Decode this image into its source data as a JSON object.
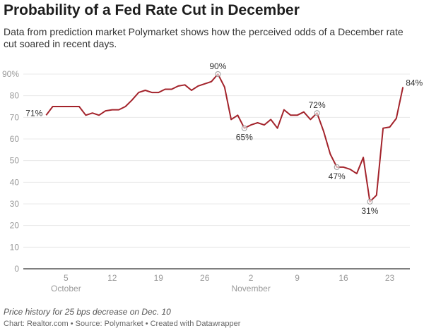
{
  "title": "Probability of a Fed Rate Cut in December",
  "subtitle": "Data from prediction market Polymarket shows how the perceived odds of a December rate cut soared in recent days.",
  "note": "Price history for 25 bps decrease on Dec. 10",
  "credit": "Chart: Realtor.com • Source: Polymarket • Created with Datawrapper",
  "chart_data": {
    "type": "line",
    "line_color": "#a3232b",
    "grid": true,
    "ylim": [
      0,
      90
    ],
    "y_ticks": [
      "0",
      "10",
      "20",
      "30",
      "40",
      "50",
      "60",
      "70",
      "80",
      "90%"
    ],
    "x_ticks": [
      {
        "date": "Oct 5",
        "label": "5",
        "month": "October"
      },
      {
        "date": "Oct 12",
        "label": "12"
      },
      {
        "date": "Oct 19",
        "label": "19"
      },
      {
        "date": "Oct 26",
        "label": "26"
      },
      {
        "date": "Nov 2",
        "label": "2",
        "month": "November"
      },
      {
        "date": "Nov 9",
        "label": "9"
      },
      {
        "date": "Nov 16",
        "label": "16"
      },
      {
        "date": "Nov 23",
        "label": "23"
      }
    ],
    "x": [
      "Oct 2",
      "Oct 3",
      "Oct 4",
      "Oct 5",
      "Oct 6",
      "Oct 7",
      "Oct 8",
      "Oct 9",
      "Oct 10",
      "Oct 11",
      "Oct 12",
      "Oct 13",
      "Oct 14",
      "Oct 15",
      "Oct 16",
      "Oct 17",
      "Oct 18",
      "Oct 19",
      "Oct 20",
      "Oct 21",
      "Oct 22",
      "Oct 23",
      "Oct 24",
      "Oct 25",
      "Oct 26",
      "Oct 27",
      "Oct 28",
      "Oct 29",
      "Oct 30",
      "Oct 31",
      "Nov 1",
      "Nov 2",
      "Nov 3",
      "Nov 4",
      "Nov 5",
      "Nov 6",
      "Nov 7",
      "Nov 8",
      "Nov 9",
      "Nov 10",
      "Nov 11",
      "Nov 12",
      "Nov 13",
      "Nov 14",
      "Nov 15",
      "Nov 16",
      "Nov 17",
      "Nov 18",
      "Nov 19",
      "Nov 20",
      "Nov 21",
      "Nov 22",
      "Nov 23",
      "Nov 24",
      "Nov 25"
    ],
    "y": [
      71,
      75,
      75,
      75,
      75,
      75,
      71,
      72,
      71,
      73,
      73.5,
      73.5,
      75,
      78,
      81.5,
      82.5,
      81.5,
      81.5,
      83,
      83,
      84.5,
      85,
      82.5,
      84.5,
      85.5,
      86.5,
      90,
      84,
      69,
      71,
      65,
      66.5,
      67.5,
      66.5,
      69,
      65,
      73.5,
      71,
      71,
      72.5,
      69,
      72,
      63.5,
      53,
      47,
      47,
      46,
      44,
      51.5,
      31,
      34,
      65,
      65.5,
      69.5,
      84
    ],
    "annotations": [
      {
        "date": "Oct 2",
        "label": "71%",
        "pos": "left",
        "marker": false
      },
      {
        "date": "Oct 28",
        "label": "90%",
        "pos": "above",
        "marker": true
      },
      {
        "date": "Nov 1",
        "label": "65%",
        "pos": "below",
        "marker": true
      },
      {
        "date": "Nov 12",
        "label": "72%",
        "pos": "above",
        "marker": true
      },
      {
        "date": "Nov 15",
        "label": "47%",
        "pos": "below",
        "marker": true
      },
      {
        "date": "Nov 20",
        "label": "31%",
        "pos": "below",
        "marker": true
      },
      {
        "date": "Nov 25",
        "label": "84%",
        "pos": "right",
        "marker": false
      }
    ]
  }
}
